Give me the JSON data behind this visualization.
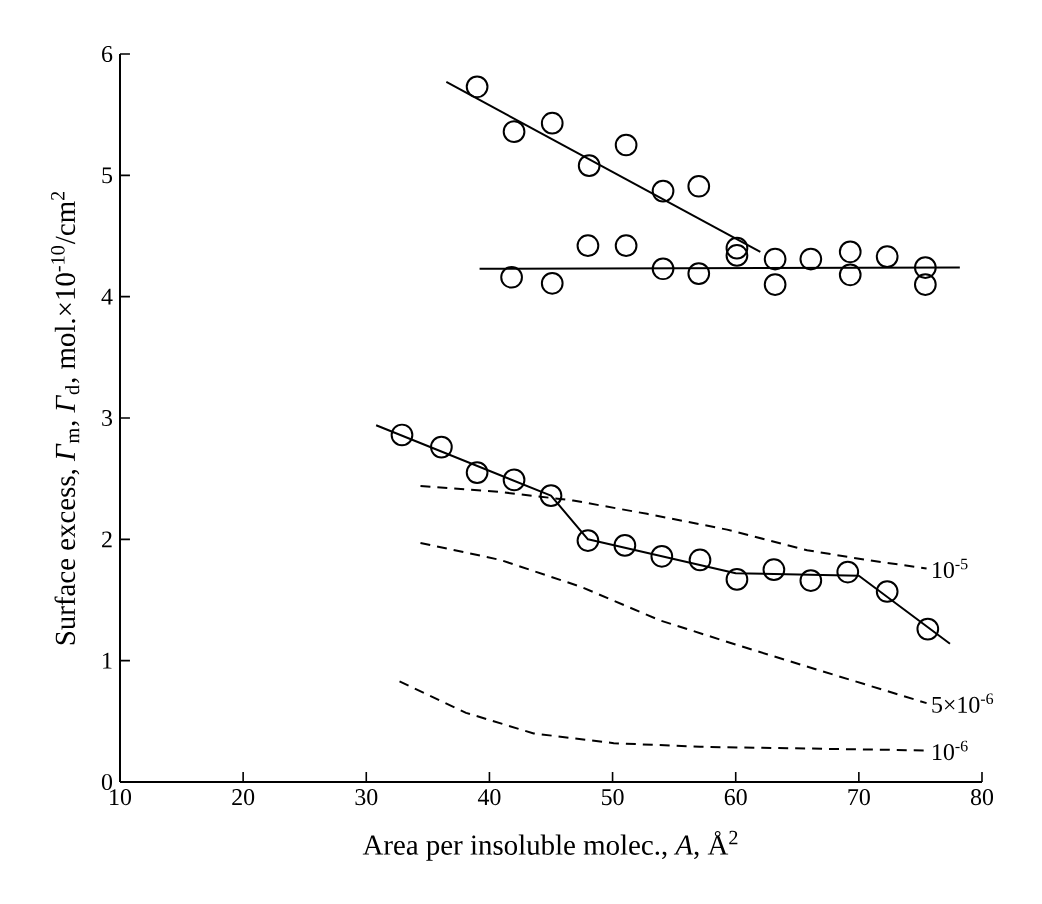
{
  "chart_data": {
    "type": "scatter",
    "xlabel": "Area per insoluble molec., *A*, Å$^{2}$",
    "ylabel": "Surface excess, *Γ*$_{m}$, *Γ*$_{d}$, mol.×10$^{-10}$/cm$^{2}$",
    "xlim": [
      10,
      80
    ],
    "xticks": [
      10,
      20,
      30,
      40,
      50,
      60,
      70,
      80
    ],
    "ylim": [
      0,
      6
    ],
    "yticks": [
      0,
      1,
      2,
      3,
      4,
      5,
      6
    ],
    "grid": false,
    "legend": false,
    "series": [
      {
        "marker": "circle",
        "color": "#000000",
        "x": [
          39.0,
          42.0,
          45.1,
          48.1,
          51.1,
          54.1,
          57.0,
          60.1,
          63.2,
          66.1,
          69.3,
          72.3,
          75.4,
          75.4
        ],
        "values": [
          5.73,
          5.36,
          5.43,
          5.08,
          5.25,
          4.87,
          4.91,
          4.4,
          4.1,
          4.31,
          4.37,
          4.33,
          4.24,
          4.1
        ]
      },
      {
        "marker": "circle",
        "color": "#000000",
        "x": [
          41.8,
          45.1,
          48.0,
          51.1,
          54.1,
          57.0,
          60.1,
          63.2,
          69.3
        ],
        "values": [
          4.16,
          4.11,
          4.42,
          4.42,
          4.23,
          4.19,
          4.34,
          4.31,
          4.18
        ]
      },
      {
        "marker": "circle",
        "color": "#000000",
        "x": [
          32.9,
          36.1,
          39.0,
          42.0,
          45.0,
          48.0,
          51.0,
          54.0,
          57.1,
          60.1,
          63.1,
          66.1,
          69.1,
          72.3,
          75.6
        ],
        "values": [
          2.86,
          2.76,
          2.55,
          2.49,
          2.36,
          1.99,
          1.95,
          1.86,
          1.83,
          1.67,
          1.75,
          1.66,
          1.73,
          1.57,
          1.26
        ]
      },
      {
        "type": "line",
        "color": "#000000",
        "line_style": "solid",
        "x": [
          36.5,
          62.0
        ],
        "values": [
          5.77,
          4.37
        ]
      },
      {
        "type": "line",
        "color": "#000000",
        "line_style": "solid",
        "x": [
          39.2,
          78.2
        ],
        "values": [
          4.23,
          4.24
        ]
      },
      {
        "type": "line",
        "color": "#000000",
        "line_style": "solid",
        "x": [
          30.8,
          45.0,
          48.0,
          60.0,
          70.0,
          77.4
        ],
        "values": [
          2.94,
          2.36,
          2.0,
          1.72,
          1.7,
          1.14
        ]
      },
      {
        "type": "line",
        "name": "10$^{-5}$",
        "color": "#000000",
        "line_style": "dashed",
        "x": [
          34.4,
          40.9,
          46.8,
          52.8,
          59.3,
          65.8,
          70.6,
          75.5
        ],
        "values": [
          2.44,
          2.39,
          2.32,
          2.21,
          2.08,
          1.91,
          1.83,
          1.76
        ]
      },
      {
        "type": "line",
        "name": "5×10$^{-6}$",
        "color": "#000000",
        "line_style": "dashed",
        "x": [
          34.4,
          40.9,
          47.4,
          53.9,
          60.4,
          66.8,
          75.5
        ],
        "values": [
          1.97,
          1.83,
          1.61,
          1.33,
          1.12,
          0.92,
          0.65
        ]
      },
      {
        "type": "line",
        "name": "10$^{-6}$",
        "color": "#000000",
        "line_style": "dashed",
        "x": [
          32.7,
          38.1,
          43.6,
          50.1,
          57.1,
          75.5
        ],
        "values": [
          0.83,
          0.57,
          0.4,
          0.32,
          0.29,
          0.26
        ]
      }
    ]
  }
}
